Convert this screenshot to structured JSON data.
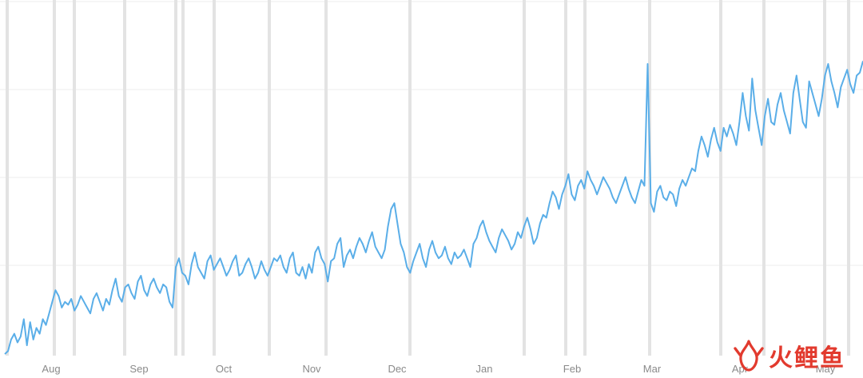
{
  "chart_data": {
    "type": "line",
    "x_labels": [
      "Aug",
      "Sep",
      "Oct",
      "Nov",
      "Dec",
      "Jan",
      "Feb",
      "Mar",
      "Apr",
      "May"
    ],
    "grid": true,
    "line_color": "#5aaee8",
    "grid_color": "#ececec",
    "band_color": "#e3e3e3",
    "y_range": [
      0,
      100
    ],
    "series": [
      {
        "values": [
          0,
          1,
          5,
          7,
          4,
          6,
          12,
          3,
          11,
          5,
          9,
          7,
          12,
          10,
          14,
          18,
          22,
          20,
          16,
          18,
          17,
          19,
          15,
          17,
          20,
          18,
          16,
          14,
          19,
          21,
          18,
          15,
          19,
          17,
          22,
          26,
          20,
          18,
          23,
          24,
          21,
          19,
          25,
          27,
          22,
          20,
          24,
          26,
          23,
          21,
          24,
          23,
          18,
          16,
          30,
          33,
          28,
          27,
          24,
          31,
          35,
          30,
          28,
          26,
          32,
          34,
          29,
          31,
          33,
          30,
          27,
          29,
          32,
          34,
          27,
          28,
          31,
          33,
          30,
          26,
          28,
          32,
          29,
          27,
          30,
          33,
          32,
          34,
          30,
          28,
          33,
          35,
          28,
          27,
          30,
          26,
          31,
          28,
          35,
          37,
          33,
          31,
          25,
          32,
          33,
          38,
          40,
          30,
          34,
          36,
          33,
          37,
          40,
          38,
          35,
          39,
          42,
          37,
          35,
          33,
          36,
          44,
          50,
          52,
          45,
          38,
          35,
          30,
          28,
          32,
          35,
          38,
          33,
          30,
          36,
          39,
          35,
          33,
          34,
          37,
          33,
          31,
          35,
          33,
          34,
          36,
          33,
          30,
          38,
          40,
          44,
          46,
          42,
          39,
          37,
          35,
          40,
          43,
          41,
          39,
          36,
          38,
          42,
          40,
          44,
          47,
          43,
          38,
          40,
          45,
          48,
          47,
          52,
          56,
          54,
          50,
          55,
          58,
          62,
          55,
          53,
          58,
          60,
          57,
          63,
          60,
          58,
          55,
          58,
          61,
          59,
          57,
          54,
          52,
          55,
          58,
          61,
          57,
          54,
          52,
          56,
          60,
          58,
          55,
          52,
          49,
          56,
          58,
          54,
          53,
          56,
          55,
          51,
          57,
          60,
          58,
          61,
          64,
          63,
          70,
          75,
          72,
          68,
          74,
          78,
          73,
          70,
          78,
          75,
          79,
          76,
          72,
          80,
          90,
          82,
          77,
          95,
          84,
          78,
          72,
          82,
          88,
          80,
          79,
          86,
          90,
          84,
          80,
          76,
          90,
          96,
          88,
          80,
          78,
          94,
          90,
          86,
          82,
          88,
          96,
          100,
          94,
          90,
          85,
          92,
          95,
          98,
          93,
          90,
          96,
          97,
          101
        ]
      }
    ]
  },
  "watermark": {
    "text": "火鲤鱼",
    "color": "#e23a2e"
  }
}
